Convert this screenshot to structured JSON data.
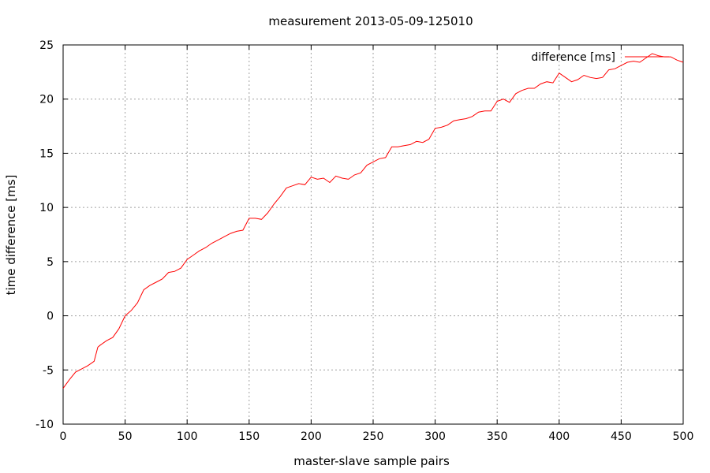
{
  "chart_data": {
    "type": "line",
    "title": "measurement 2013-05-09-125010",
    "xlabel": "master-slave sample pairs",
    "ylabel": "time difference [ms]",
    "xlim": [
      0,
      500
    ],
    "ylim": [
      -10,
      25
    ],
    "xticks": [
      0,
      50,
      100,
      150,
      200,
      250,
      300,
      350,
      400,
      450,
      500
    ],
    "yticks": [
      -10,
      -5,
      0,
      5,
      10,
      15,
      20,
      25
    ],
    "grid": true,
    "legend_position": "top-right",
    "series": [
      {
        "name": "difference [ms]",
        "color": "#ff0000",
        "x": [
          0,
          5,
          10,
          15,
          20,
          25,
          28,
          30,
          35,
          40,
          45,
          50,
          55,
          60,
          65,
          70,
          75,
          80,
          85,
          90,
          95,
          100,
          105,
          110,
          115,
          120,
          125,
          130,
          135,
          140,
          145,
          150,
          155,
          160,
          165,
          170,
          175,
          180,
          185,
          190,
          195,
          200,
          205,
          210,
          215,
          220,
          225,
          230,
          235,
          240,
          245,
          250,
          255,
          260,
          265,
          270,
          275,
          280,
          285,
          290,
          295,
          300,
          305,
          310,
          315,
          320,
          325,
          330,
          335,
          340,
          345,
          350,
          355,
          360,
          365,
          370,
          375,
          380,
          385,
          390,
          395,
          400,
          405,
          410,
          415,
          420,
          425,
          430,
          435,
          440,
          445,
          450,
          455,
          460,
          465,
          470,
          475,
          480,
          485,
          490,
          495,
          500
        ],
        "y": [
          -6.7,
          -5.9,
          -5.2,
          -4.9,
          -4.6,
          -4.2,
          -2.9,
          -2.7,
          -2.3,
          -2.0,
          -1.2,
          0.0,
          0.5,
          1.2,
          2.4,
          2.8,
          3.1,
          3.4,
          4.0,
          4.1,
          4.4,
          5.2,
          5.6,
          6.0,
          6.3,
          6.7,
          7.0,
          7.3,
          7.6,
          7.8,
          7.9,
          9.0,
          9.0,
          8.9,
          9.5,
          10.3,
          11.0,
          11.8,
          12.0,
          12.2,
          12.1,
          12.8,
          12.6,
          12.7,
          12.3,
          12.9,
          12.7,
          12.6,
          13.0,
          13.2,
          13.9,
          14.2,
          14.5,
          14.6,
          15.6,
          15.6,
          15.7,
          15.8,
          16.1,
          16.0,
          16.3,
          17.3,
          17.4,
          17.6,
          18.0,
          18.1,
          18.2,
          18.4,
          18.8,
          18.9,
          18.9,
          19.8,
          20.0,
          19.7,
          20.5,
          20.8,
          21.0,
          21.0,
          21.4,
          21.6,
          21.5,
          22.4,
          22.0,
          21.6,
          21.8,
          22.2,
          22.0,
          21.9,
          22.0,
          22.7,
          22.8,
          23.1,
          23.4,
          23.5,
          23.4,
          23.8,
          24.2,
          24.0,
          23.9,
          23.9,
          23.6,
          23.4
        ]
      }
    ]
  }
}
